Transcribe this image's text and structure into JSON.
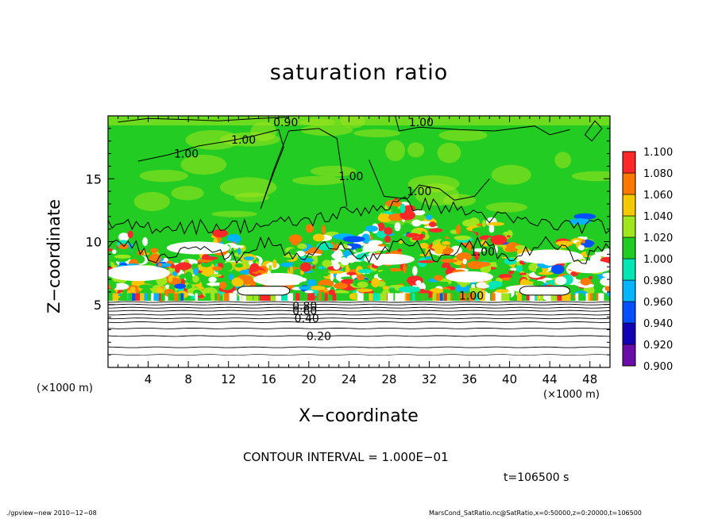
{
  "chart_data": {
    "type": "heatmap",
    "title": "saturation ratio",
    "xlabel": "X−coordinate",
    "ylabel": "Z−coordinate",
    "x_unit_label": "(×1000 m)",
    "xlim": [
      0,
      50
    ],
    "ylim": [
      0,
      20
    ],
    "x_ticks": [
      4,
      8,
      12,
      16,
      20,
      24,
      28,
      32,
      36,
      40,
      44,
      48
    ],
    "y_ticks": [
      5,
      10,
      15
    ],
    "colorbar": {
      "levels": [
        0.9,
        0.92,
        0.94,
        0.96,
        0.98,
        1.0,
        1.02,
        1.04,
        1.06,
        1.08,
        1.1
      ],
      "labels": [
        "0.900",
        "0.920",
        "0.940",
        "0.960",
        "0.980",
        "1.000",
        "1.020",
        "1.040",
        "1.060",
        "1.080",
        "1.100"
      ],
      "colors": [
        "#6a0da8",
        "#1400b4",
        "#0050ff",
        "#00b4ff",
        "#00e6b4",
        "#22cc22",
        "#a0e61e",
        "#f5c800",
        "#ff7800",
        "#ff2828",
        "#ff8c8c"
      ]
    },
    "contour_labels": [
      {
        "text": "0.20",
        "x": 21,
        "y": 2.5
      },
      {
        "text": "0.40",
        "x": 19.8,
        "y": 3.9
      },
      {
        "text": "0.60",
        "x": 19.6,
        "y": 4.5
      },
      {
        "text": "0.80",
        "x": 19.6,
        "y": 4.9
      },
      {
        "text": "1.00",
        "x": 13.5,
        "y": 18.1
      },
      {
        "text": "1.00",
        "x": 7.8,
        "y": 17.0
      },
      {
        "text": "1.00",
        "x": 24.2,
        "y": 15.2
      },
      {
        "text": "1.00",
        "x": 31.0,
        "y": 14.0
      },
      {
        "text": "1.00",
        "x": 37.3,
        "y": 9.2
      },
      {
        "text": "1.00",
        "x": 36.2,
        "y": 5.7
      },
      {
        "text": "0.90",
        "x": 17.7,
        "y": 19.5
      },
      {
        "text": "1.00",
        "x": 31.2,
        "y": 19.5
      }
    ]
  },
  "annotations": {
    "contour_interval": "CONTOUR INTERVAL = 1.000E−01",
    "time": "t=106500 s",
    "footer_left": "./gpview−new   2010−12−08",
    "footer_right": "MarsCond_SatRatio.nc@SatRatio,x=0:50000,z=0:20000,t=106500"
  }
}
